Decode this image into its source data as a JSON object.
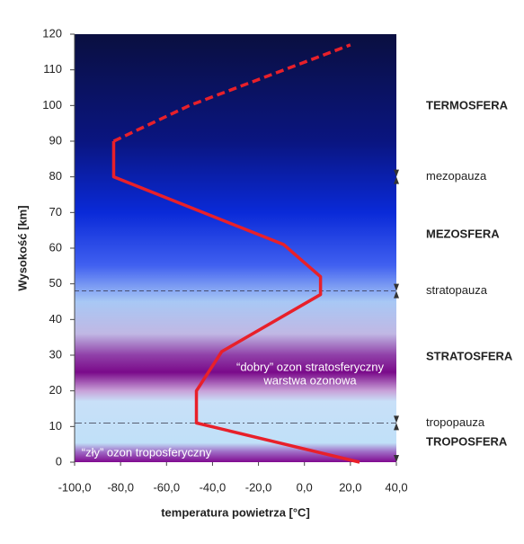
{
  "chart_data": {
    "type": "line",
    "xlabel": "temperatura powietrza [°C]",
    "ylabel": "Wysokość [km]",
    "xlim": [
      -100,
      40
    ],
    "xticks": [
      {
        "value": -100,
        "label": "-100,0"
      },
      {
        "value": -80,
        "label": "-80,0"
      },
      {
        "value": -60,
        "label": "-60,0"
      },
      {
        "value": -40,
        "label": "-40,0"
      },
      {
        "value": -20,
        "label": "-20,0"
      },
      {
        "value": 0,
        "label": "0,0"
      },
      {
        "value": 20,
        "label": "20,0"
      },
      {
        "value": 40,
        "label": "40,0"
      }
    ],
    "ylim": [
      0,
      120
    ],
    "yticks": [
      0,
      10,
      20,
      30,
      40,
      50,
      60,
      70,
      80,
      90,
      100,
      110,
      120
    ],
    "series": [
      {
        "color": "#e8202a",
        "style": "solid",
        "x": [
          24,
          -47,
          -47,
          -36,
          7,
          7,
          -9,
          -83,
          -83
        ],
        "values": [
          0,
          11,
          20,
          31,
          47,
          52,
          61,
          80,
          90
        ]
      },
      {
        "color": "#e8202a",
        "style": "dashed",
        "x": [
          -83,
          -50,
          20
        ],
        "values": [
          90,
          100,
          117
        ]
      }
    ],
    "boundaries": [
      {
        "label": "mezopauza",
        "value": 80,
        "style": "none"
      },
      {
        "label": "stratopauza",
        "value": 48,
        "style": "dashed"
      },
      {
        "label": "tropopauza",
        "value": 11,
        "style": "dashdot"
      }
    ],
    "layers": [
      "TERMOSFERA",
      "MEZOSFERA",
      "STRATOSFERA",
      "TROPOSFERA"
    ],
    "notes": [
      "“dobry” ozon stratosferyczny",
      "warstwa ozonowa",
      "“zły” ozon troposferyczny"
    ]
  }
}
